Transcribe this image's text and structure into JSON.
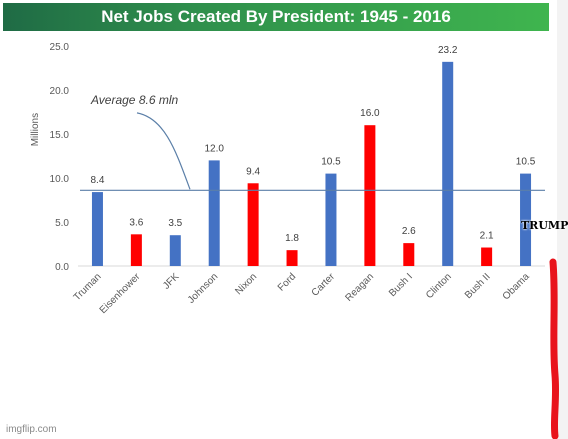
{
  "chart_data": {
    "type": "bar",
    "title": "Net Jobs Created By President: 1945 - 2016",
    "ylabel": "Millions",
    "xlabel": "",
    "ylim": [
      0,
      25
    ],
    "yticks": [
      "0.0",
      "5.0",
      "10.0",
      "15.0",
      "20.0",
      "25.0"
    ],
    "categories": [
      "Truman",
      "Eisenhower",
      "JFK",
      "Johnson",
      "Nixon",
      "Ford",
      "Carter",
      "Reagan",
      "Bush I",
      "Clinton",
      "Bush II",
      "Obama"
    ],
    "values": [
      8.4,
      3.6,
      3.5,
      12.0,
      9.4,
      1.8,
      10.5,
      16.0,
      2.6,
      23.2,
      2.1,
      10.5
    ],
    "value_labels": [
      "8.4",
      "3.6",
      "3.5",
      "12.0",
      "9.4",
      "1.8",
      "10.5",
      "16.0",
      "2.6",
      "23.2",
      "2.1",
      "10.5"
    ],
    "bar_colors": [
      "#4472c4",
      "#ff0000",
      "#4472c4",
      "#4472c4",
      "#ff0000",
      "#ff0000",
      "#4472c4",
      "#ff0000",
      "#ff0000",
      "#4472c4",
      "#ff0000",
      "#4472c4"
    ],
    "average": {
      "value": 8.6,
      "label": "Average 8.6 mln"
    },
    "grid": false,
    "legend": "none"
  },
  "annotation": {
    "label": "TRUMP",
    "color": "#e8141c"
  },
  "watermark": "imgflip.com"
}
